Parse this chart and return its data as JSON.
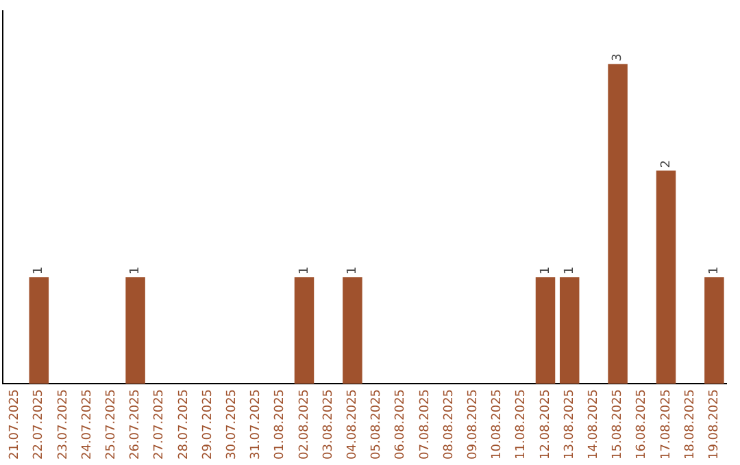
{
  "chart_data": {
    "type": "bar",
    "categories": [
      "21.07.2025",
      "22.07.2025",
      "23.07.2025",
      "24.07.2025",
      "25.07.2025",
      "26.07.2025",
      "27.07.2025",
      "28.07.2025",
      "29.07.2025",
      "30.07.2025",
      "31.07.2025",
      "01.08.2025",
      "02.08.2025",
      "03.08.2025",
      "04.08.2025",
      "05.08.2025",
      "06.08.2025",
      "07.08.2025",
      "08.08.2025",
      "09.08.2025",
      "10.08.2025",
      "11.08.2025",
      "12.08.2025",
      "13.08.2025",
      "14.08.2025",
      "15.08.2025",
      "16.08.2025",
      "17.08.2025",
      "18.08.2025",
      "19.08.2025"
    ],
    "values": [
      0,
      1,
      0,
      0,
      0,
      1,
      0,
      0,
      0,
      0,
      0,
      0,
      1,
      0,
      1,
      0,
      0,
      0,
      0,
      0,
      0,
      0,
      1,
      1,
      0,
      3,
      0,
      2,
      0,
      1
    ],
    "value_labels": [
      null,
      "1",
      null,
      null,
      null,
      "1",
      null,
      null,
      null,
      null,
      null,
      null,
      "1",
      null,
      "1",
      null,
      null,
      null,
      null,
      null,
      null,
      null,
      "1",
      "1",
      null,
      "3",
      null,
      "2",
      null,
      "1"
    ],
    "color": "#a0522d",
    "tick_labels": "x",
    "grid": false,
    "legend": false
  }
}
